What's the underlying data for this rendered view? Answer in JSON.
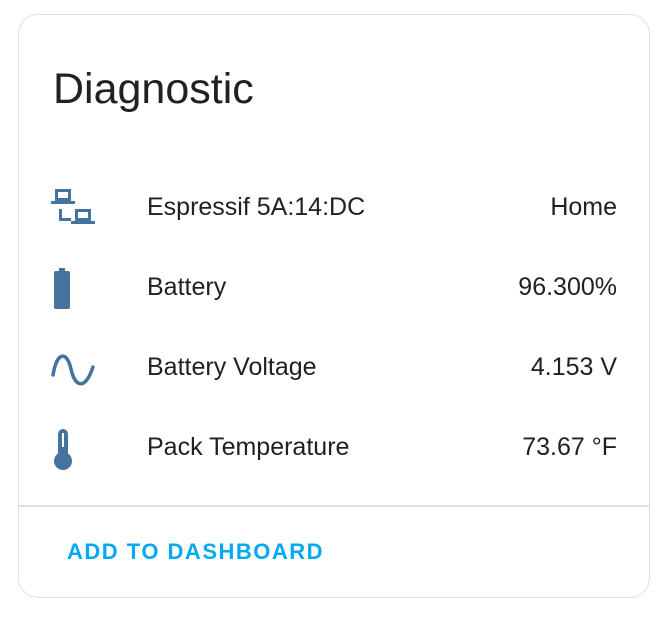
{
  "card": {
    "title": "Diagnostic",
    "rows": [
      {
        "icon": "lan-icon",
        "label": "Espressif 5A:14:DC",
        "value": "Home"
      },
      {
        "icon": "battery-icon",
        "label": "Battery",
        "value": "96.300%"
      },
      {
        "icon": "sine-wave-icon",
        "label": "Battery Voltage",
        "value": "4.153 V"
      },
      {
        "icon": "thermometer-icon",
        "label": "Pack Temperature",
        "value": "73.67 °F"
      }
    ],
    "action_label": "ADD TO DASHBOARD"
  },
  "colors": {
    "icon": "#44739e",
    "accent": "#03a9f4"
  }
}
